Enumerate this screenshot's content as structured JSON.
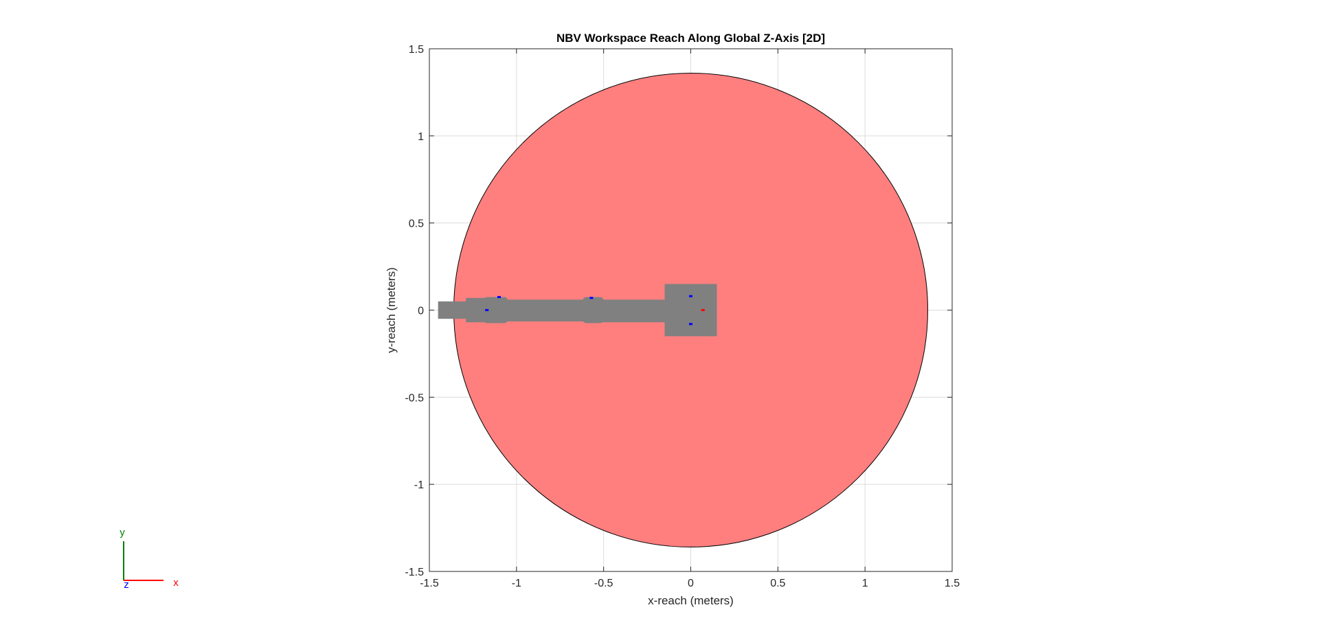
{
  "chart_data": {
    "type": "scatter",
    "title": "NBV Workspace Reach Along Global Z-Axis [2D]",
    "xlabel": "x-reach (meters)",
    "ylabel": "y-reach (meters)",
    "xlim": [
      -1.5,
      1.5
    ],
    "ylim": [
      -1.5,
      1.5
    ],
    "xticks": [
      -1.5,
      -1,
      -0.5,
      0,
      0.5,
      1,
      1.5
    ],
    "yticks": [
      -1.5,
      -1,
      -0.5,
      0,
      0.5,
      1,
      1.5
    ],
    "xtick_labels": [
      "-1.5",
      "-1",
      "-0.5",
      "0",
      "0.5",
      "1",
      "1.5"
    ],
    "ytick_labels": [
      "-1.5",
      "-1",
      "-0.5",
      "0",
      "0.5",
      "1",
      "1.5"
    ],
    "grid": true,
    "workspace_disk": {
      "center": [
        0,
        0
      ],
      "radius": 1.36,
      "color": "#ff7f7f"
    },
    "robot_color": "#808080",
    "robot_shapes": [
      {
        "part": "base",
        "x": [
          -0.15,
          0.15
        ],
        "y": [
          -0.15,
          0.15
        ]
      },
      {
        "part": "upper-arm",
        "x": [
          -0.58,
          -0.15
        ],
        "y": [
          -0.07,
          0.06
        ]
      },
      {
        "part": "elbow-joint",
        "x": [
          -0.62,
          -0.5
        ],
        "y": [
          -0.075,
          0.075
        ]
      },
      {
        "part": "forearm",
        "x": [
          -1.14,
          -0.58
        ],
        "y": [
          -0.065,
          0.06
        ]
      },
      {
        "part": "wrist-joint",
        "x": [
          -1.19,
          -1.05
        ],
        "y": [
          -0.075,
          0.075
        ]
      },
      {
        "part": "wrist-link",
        "x": [
          -1.29,
          -1.17
        ],
        "y": [
          -0.07,
          0.07
        ]
      },
      {
        "part": "end-effector",
        "x": [
          -1.45,
          -1.28
        ],
        "y": [
          -0.05,
          0.05
        ]
      }
    ],
    "frame_markers": [
      {
        "x": 0.07,
        "y": 0,
        "color": "#ff0000"
      },
      {
        "x": -1.17,
        "y": 0,
        "color": "#0000ff"
      },
      {
        "x": -0.57,
        "y": 0.07,
        "color": "#0000ff"
      },
      {
        "x": -1.1,
        "y": 0.075,
        "color": "#0000ff"
      },
      {
        "x": 0,
        "y": -0.08,
        "color": "#0000ff"
      },
      {
        "x": 0,
        "y": 0.08,
        "color": "#0000ff"
      }
    ]
  },
  "axes_triad": {
    "x_label": "x",
    "y_label": "y",
    "z_label": "z",
    "x_color": "#ff0000",
    "y_color": "#008000",
    "z_color": "#0000ff"
  }
}
